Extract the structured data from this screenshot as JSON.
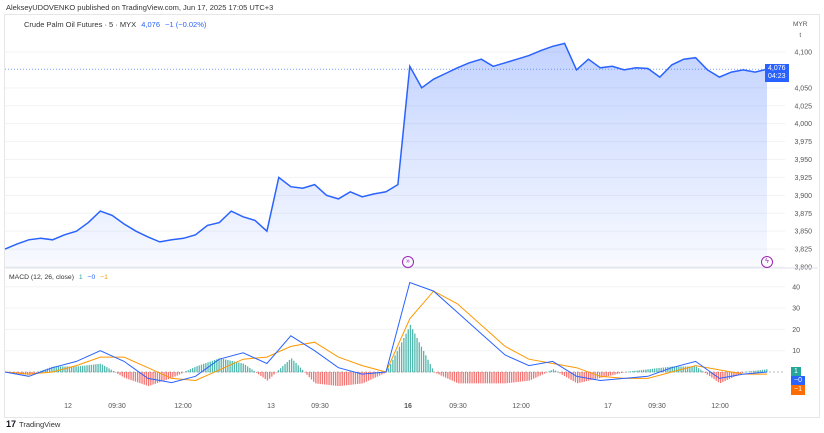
{
  "header": {
    "published": "AlekseyUDOVENKO published on TradingView.com, Jun 17, 2025 17:05 UTC+3"
  },
  "legend": {
    "symbol": "Crude Palm Oil Futures · 5 · MYX",
    "last": "4,076",
    "change": "−1 (−0.02%)"
  },
  "price_axis": {
    "unit": "MYR",
    "unit2": "t",
    "ticks": [
      "4,100",
      "4,050",
      "4,025",
      "4,000",
      "3,975",
      "3,950",
      "3,925",
      "3,900",
      "3,875",
      "3,850",
      "3,825",
      "3,800"
    ],
    "last_tag": "4,076",
    "countdown": "04:23"
  },
  "macd": {
    "title": "MACD (12, 26, close)",
    "hist": "1",
    "macd": "−0",
    "signal": "−1",
    "ticks": [
      "40",
      "30",
      "20",
      "10"
    ],
    "tag_hist": "1",
    "tag_macd": "−0",
    "tag_signal": "−1"
  },
  "time_axis": [
    "12",
    "09:30",
    "12:00",
    "13",
    "09:30",
    "16",
    "09:30",
    "12:00",
    "17",
    "09:30",
    "12:00"
  ],
  "colors": {
    "line": "#2962ff",
    "signal": "#ff9800",
    "hist_up": "#26a69a",
    "hist_down": "#ef5350",
    "event": "#9c27b0"
  },
  "footer": {
    "brand": "TradingView"
  },
  "chart_data": {
    "type": "line",
    "ylim": [
      3800,
      4100
    ],
    "price": [
      3825,
      3832,
      3838,
      3840,
      3838,
      3845,
      3850,
      3862,
      3878,
      3872,
      3860,
      3850,
      3842,
      3835,
      3838,
      3840,
      3845,
      3858,
      3862,
      3878,
      3870,
      3865,
      3850,
      3925,
      3912,
      3910,
      3915,
      3900,
      3895,
      3905,
      3898,
      3902,
      3905,
      3915,
      4080,
      4050,
      4062,
      4070,
      4078,
      4085,
      4090,
      4080,
      4085,
      4090,
      4095,
      4102,
      4108,
      4112,
      4075,
      4090,
      4078,
      4080,
      4075,
      4078,
      4077,
      4065,
      4082,
      4090,
      4092,
      4075,
      4065,
      4072,
      4075,
      4072,
      4076
    ],
    "macd_line": [
      0,
      -2,
      2,
      5,
      10,
      5,
      -3,
      -5,
      -2,
      6,
      9,
      4,
      17,
      10,
      2,
      -1,
      0,
      42,
      38,
      28,
      18,
      8,
      3,
      5,
      -2,
      -4,
      -3,
      -2,
      2,
      5,
      -3,
      -1,
      0
    ],
    "signal_line": [
      0,
      -1,
      0,
      3,
      7,
      7,
      2,
      -3,
      -4,
      1,
      6,
      7,
      12,
      14,
      7,
      3,
      0,
      25,
      38,
      32,
      22,
      12,
      6,
      4,
      2,
      -2,
      -3,
      -3,
      0,
      3,
      1,
      -1,
      -1
    ]
  }
}
